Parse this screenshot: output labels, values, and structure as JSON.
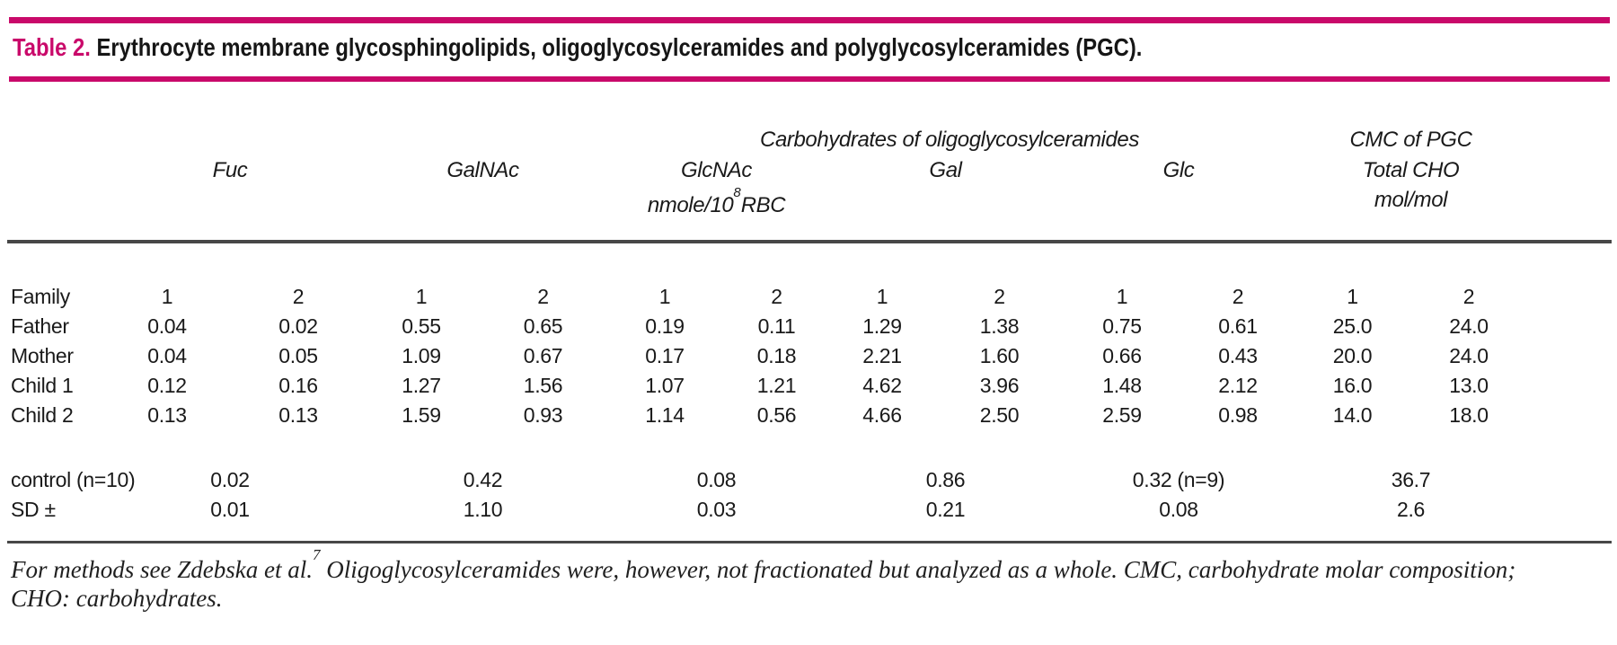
{
  "caption": {
    "label": "Table 2.",
    "text": "Erythrocyte membrane glycosphingolipids, oligoglycosylceramides and polyglycosylceramides (PGC)."
  },
  "colors": {
    "accent_magenta": "#C9096A",
    "rule_gray": "#474747",
    "text_black": "#1A1A1A"
  },
  "header": {
    "group_oligo": "Carbohydrates of oligoglycosylceramides",
    "pgc": {
      "line1": "CMC of PGC",
      "line2": "Total CHO",
      "line3": "mol/mol"
    },
    "columns": [
      "Fuc",
      "GalNAc",
      "GlcNAc",
      "Gal",
      "Glc"
    ],
    "unit": {
      "pre": "nmole/10",
      "sup": "8",
      "post": "RBC"
    }
  },
  "table": {
    "family_row": {
      "label": "Family",
      "values": [
        "1",
        "2",
        "1",
        "2",
        "1",
        "2",
        "1",
        "2",
        "1",
        "2",
        "1",
        "2"
      ]
    },
    "rows": [
      {
        "label": "Father",
        "values": [
          "0.04",
          "0.02",
          "0.55",
          "0.65",
          "0.19",
          "0.11",
          "1.29",
          "1.38",
          "0.75",
          "0.61",
          "25.0",
          "24.0"
        ]
      },
      {
        "label": "Mother",
        "values": [
          "0.04",
          "0.05",
          "1.09",
          "0.67",
          "0.17",
          "0.18",
          "2.21",
          "1.60",
          "0.66",
          "0.43",
          "20.0",
          "24.0"
        ]
      },
      {
        "label": "Child 1",
        "values": [
          "0.12",
          "0.16",
          "1.27",
          "1.56",
          "1.07",
          "1.21",
          "4.62",
          "3.96",
          "1.48",
          "2.12",
          "16.0",
          "13.0"
        ]
      },
      {
        "label": "Child 2",
        "values": [
          "0.13",
          "0.13",
          "1.59",
          "0.93",
          "1.14",
          "0.56",
          "4.66",
          "2.50",
          "2.59",
          "0.98",
          "14.0",
          "18.0"
        ]
      }
    ],
    "summary_rows": [
      {
        "label": "control (n=10)",
        "values": [
          "0.02",
          "0.42",
          "0.08",
          "0.86",
          "0.32 (n=9)",
          "36.7"
        ]
      },
      {
        "label": "SD ±",
        "values": [
          "0.01",
          "1.10",
          "0.03",
          "0.21",
          "0.08",
          "2.6"
        ]
      }
    ]
  },
  "footnote": {
    "line1_pre": "For methods see Zdebska et al.",
    "line1_sup": "7",
    "line1_post": " Oligoglycosylceramides were, however, not fractionated but analyzed as a whole. CMC, carbohydrate molar composition;",
    "line2": "CHO: carbohydrates."
  }
}
